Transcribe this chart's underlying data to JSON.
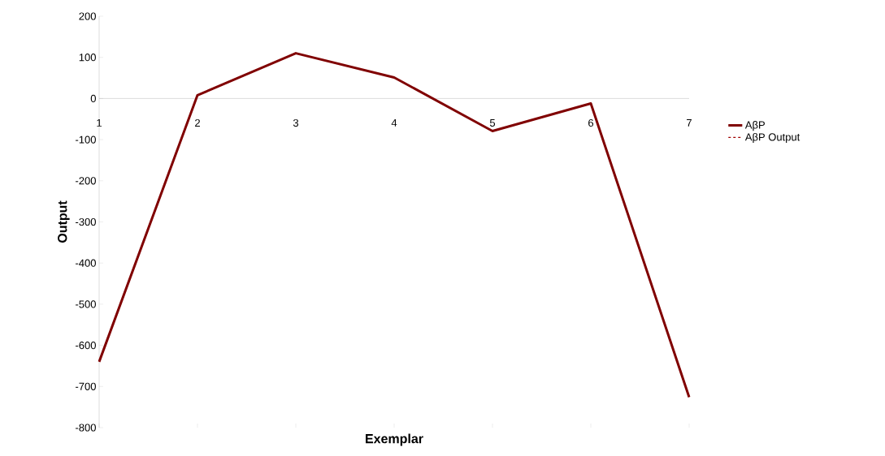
{
  "chart_data": {
    "type": "line",
    "xlabel": "Exemplar",
    "ylabel": "Output",
    "categories": [
      "1",
      "2",
      "3",
      "4",
      "5",
      "6",
      "7"
    ],
    "series": [
      {
        "name": "AβP",
        "color": "#800000",
        "line_style": "solid",
        "values": [
          -640,
          8,
          110,
          51,
          -79,
          -12,
          -726
        ]
      },
      {
        "name": "AβP Output",
        "color": "#a00000",
        "line_style": "dashed",
        "values": [
          null,
          null,
          null,
          null,
          null,
          null,
          null
        ]
      }
    ],
    "ylim": [
      -800,
      200
    ],
    "yticks": [
      -800,
      -700,
      -600,
      -500,
      -400,
      -300,
      -200,
      -100,
      0,
      100,
      200
    ],
    "legend": "right",
    "grid": false,
    "marker": "none"
  }
}
